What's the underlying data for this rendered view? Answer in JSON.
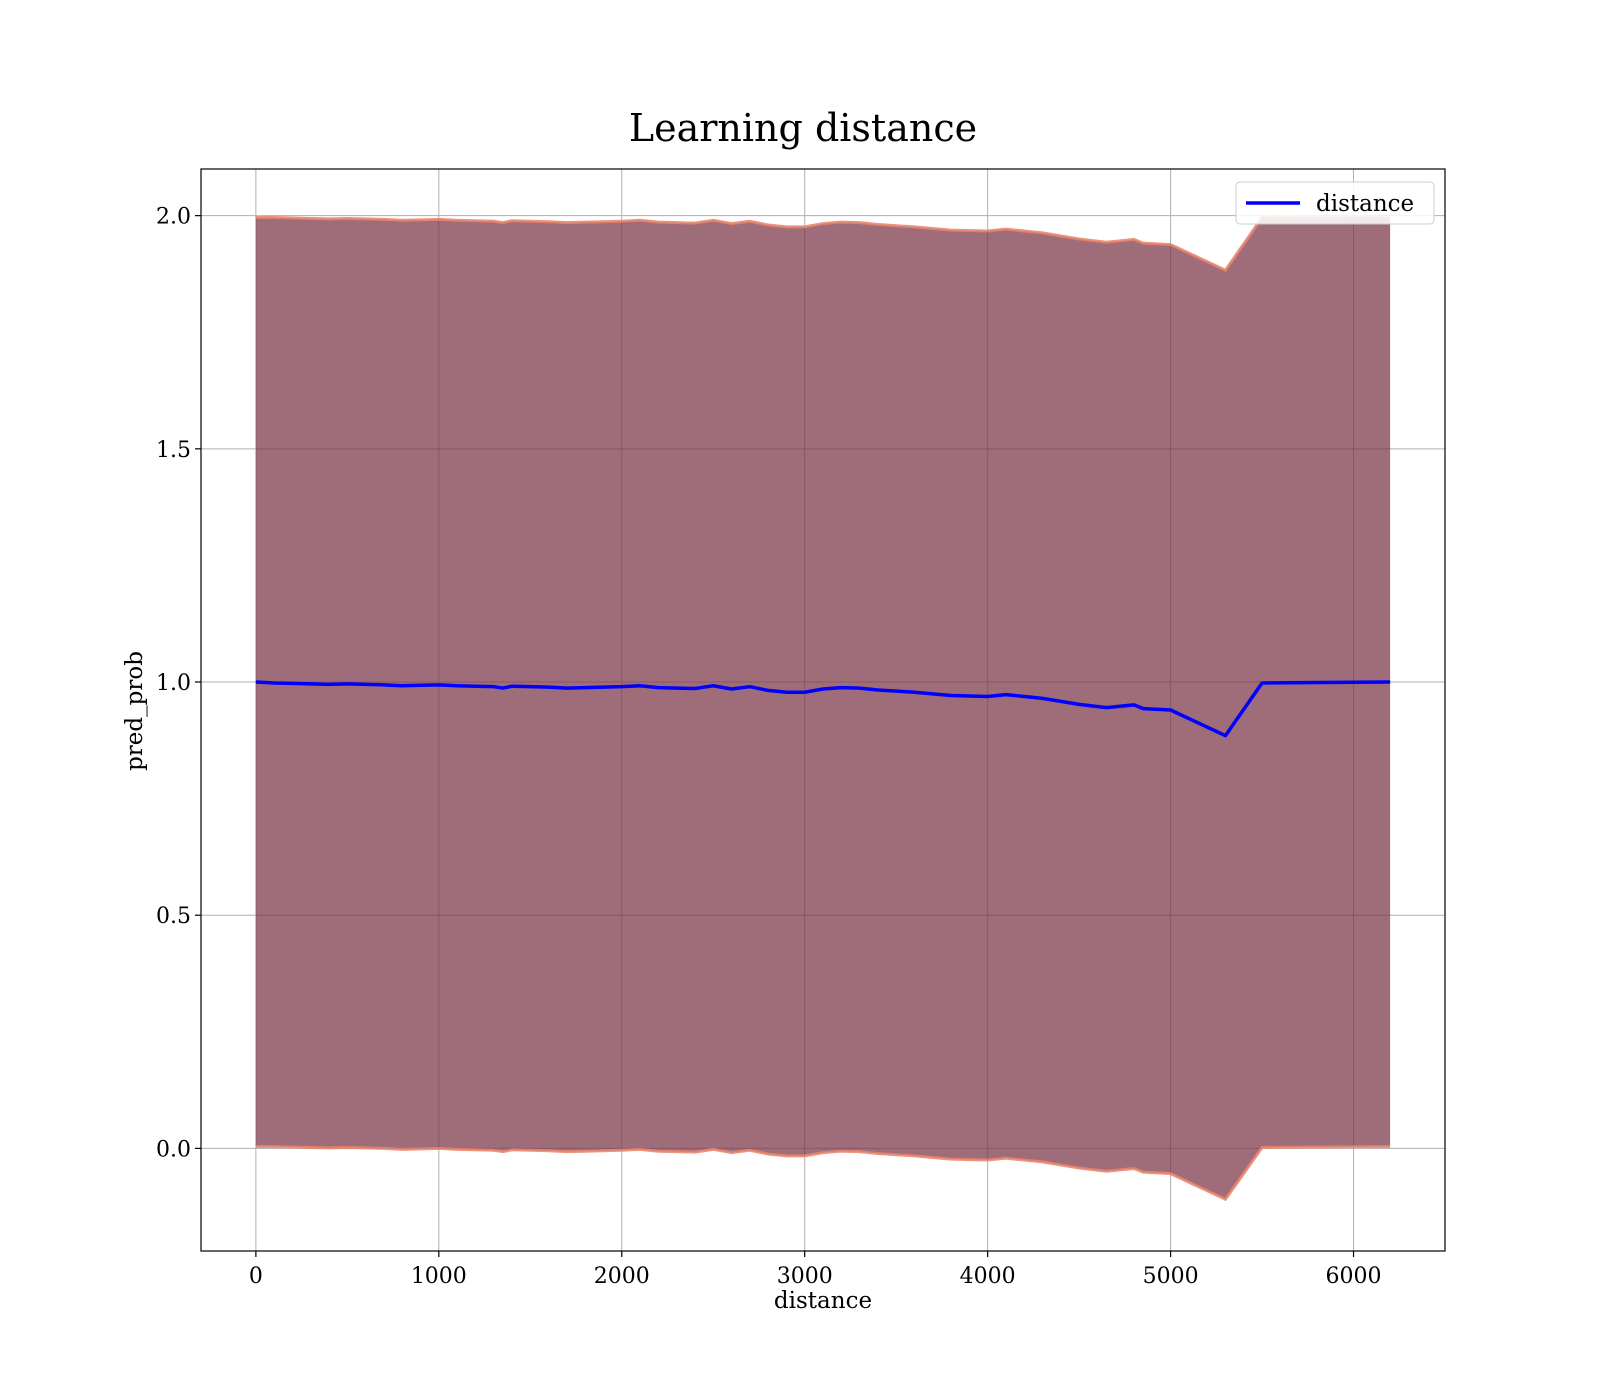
{
  "chart_data": {
    "type": "line",
    "title": "Learning distance",
    "xlabel": "distance",
    "ylabel": "pred_prob",
    "xlim": [
      -300,
      6500
    ],
    "ylim": [
      -0.22,
      2.1
    ],
    "xticks": [
      0,
      1000,
      2000,
      3000,
      4000,
      5000,
      6000
    ],
    "yticks": [
      0.0,
      0.5,
      1.0,
      1.5,
      2.0
    ],
    "xtick_labels": [
      "0",
      "1000",
      "2000",
      "3000",
      "4000",
      "5000",
      "6000"
    ],
    "ytick_labels": [
      "0.0",
      "0.5",
      "1.0",
      "1.5",
      "2.0"
    ],
    "grid": true,
    "legend_position": "top-right",
    "series": [
      {
        "name": "distance",
        "color": "#0000ff",
        "x": [
          0,
          100,
          200,
          300,
          400,
          500,
          600,
          700,
          800,
          900,
          1000,
          1100,
          1200,
          1300,
          1350,
          1400,
          1500,
          1600,
          1700,
          1800,
          1900,
          2000,
          2100,
          2200,
          2300,
          2400,
          2500,
          2600,
          2700,
          2800,
          2900,
          3000,
          3100,
          3200,
          3300,
          3400,
          3600,
          3800,
          4000,
          4100,
          4300,
          4500,
          4650,
          4800,
          4850,
          5000,
          5300,
          5500,
          6200
        ],
        "y": [
          1.0,
          0.998,
          0.997,
          0.996,
          0.995,
          0.996,
          0.995,
          0.994,
          0.992,
          0.993,
          0.994,
          0.992,
          0.991,
          0.99,
          0.987,
          0.991,
          0.99,
          0.989,
          0.987,
          0.988,
          0.989,
          0.99,
          0.992,
          0.988,
          0.987,
          0.986,
          0.992,
          0.985,
          0.99,
          0.982,
          0.978,
          0.978,
          0.985,
          0.988,
          0.987,
          0.983,
          0.978,
          0.971,
          0.969,
          0.973,
          0.965,
          0.952,
          0.945,
          0.951,
          0.943,
          0.94,
          0.885,
          0.998,
          1.0
        ]
      }
    ],
    "band": {
      "upper_color": "#e8836a",
      "fill_color": "#7a3345",
      "x": [
        0,
        100,
        200,
        300,
        400,
        500,
        600,
        700,
        800,
        900,
        1000,
        1100,
        1200,
        1300,
        1350,
        1400,
        1500,
        1600,
        1700,
        1800,
        1900,
        2000,
        2100,
        2200,
        2300,
        2400,
        2500,
        2600,
        2700,
        2800,
        2900,
        3000,
        3100,
        3200,
        3300,
        3400,
        3600,
        3800,
        4000,
        4100,
        4300,
        4500,
        4650,
        4800,
        4850,
        5000,
        5300,
        5500,
        6200
      ],
      "upper": [
        1.996,
        1.996,
        1.995,
        1.994,
        1.993,
        1.994,
        1.993,
        1.992,
        1.99,
        1.991,
        1.992,
        1.99,
        1.989,
        1.988,
        1.985,
        1.989,
        1.988,
        1.987,
        1.985,
        1.986,
        1.987,
        1.988,
        1.99,
        1.986,
        1.985,
        1.984,
        1.99,
        1.983,
        1.988,
        1.98,
        1.976,
        1.976,
        1.983,
        1.986,
        1.985,
        1.981,
        1.976,
        1.969,
        1.967,
        1.971,
        1.963,
        1.95,
        1.943,
        1.949,
        1.941,
        1.938,
        1.883,
        1.996,
        1.998
      ],
      "lower": [
        0.004,
        0.004,
        0.003,
        0.002,
        0.001,
        0.002,
        0.001,
        0.0,
        -0.002,
        -0.001,
        0.0,
        -0.002,
        -0.003,
        -0.004,
        -0.007,
        -0.003,
        -0.004,
        -0.005,
        -0.007,
        -0.006,
        -0.005,
        -0.004,
        -0.002,
        -0.006,
        -0.007,
        -0.008,
        -0.002,
        -0.009,
        -0.004,
        -0.012,
        -0.016,
        -0.016,
        -0.009,
        -0.006,
        -0.007,
        -0.011,
        -0.016,
        -0.023,
        -0.025,
        -0.021,
        -0.029,
        -0.042,
        -0.049,
        -0.043,
        -0.051,
        -0.054,
        -0.109,
        0.002,
        0.004
      ]
    }
  }
}
